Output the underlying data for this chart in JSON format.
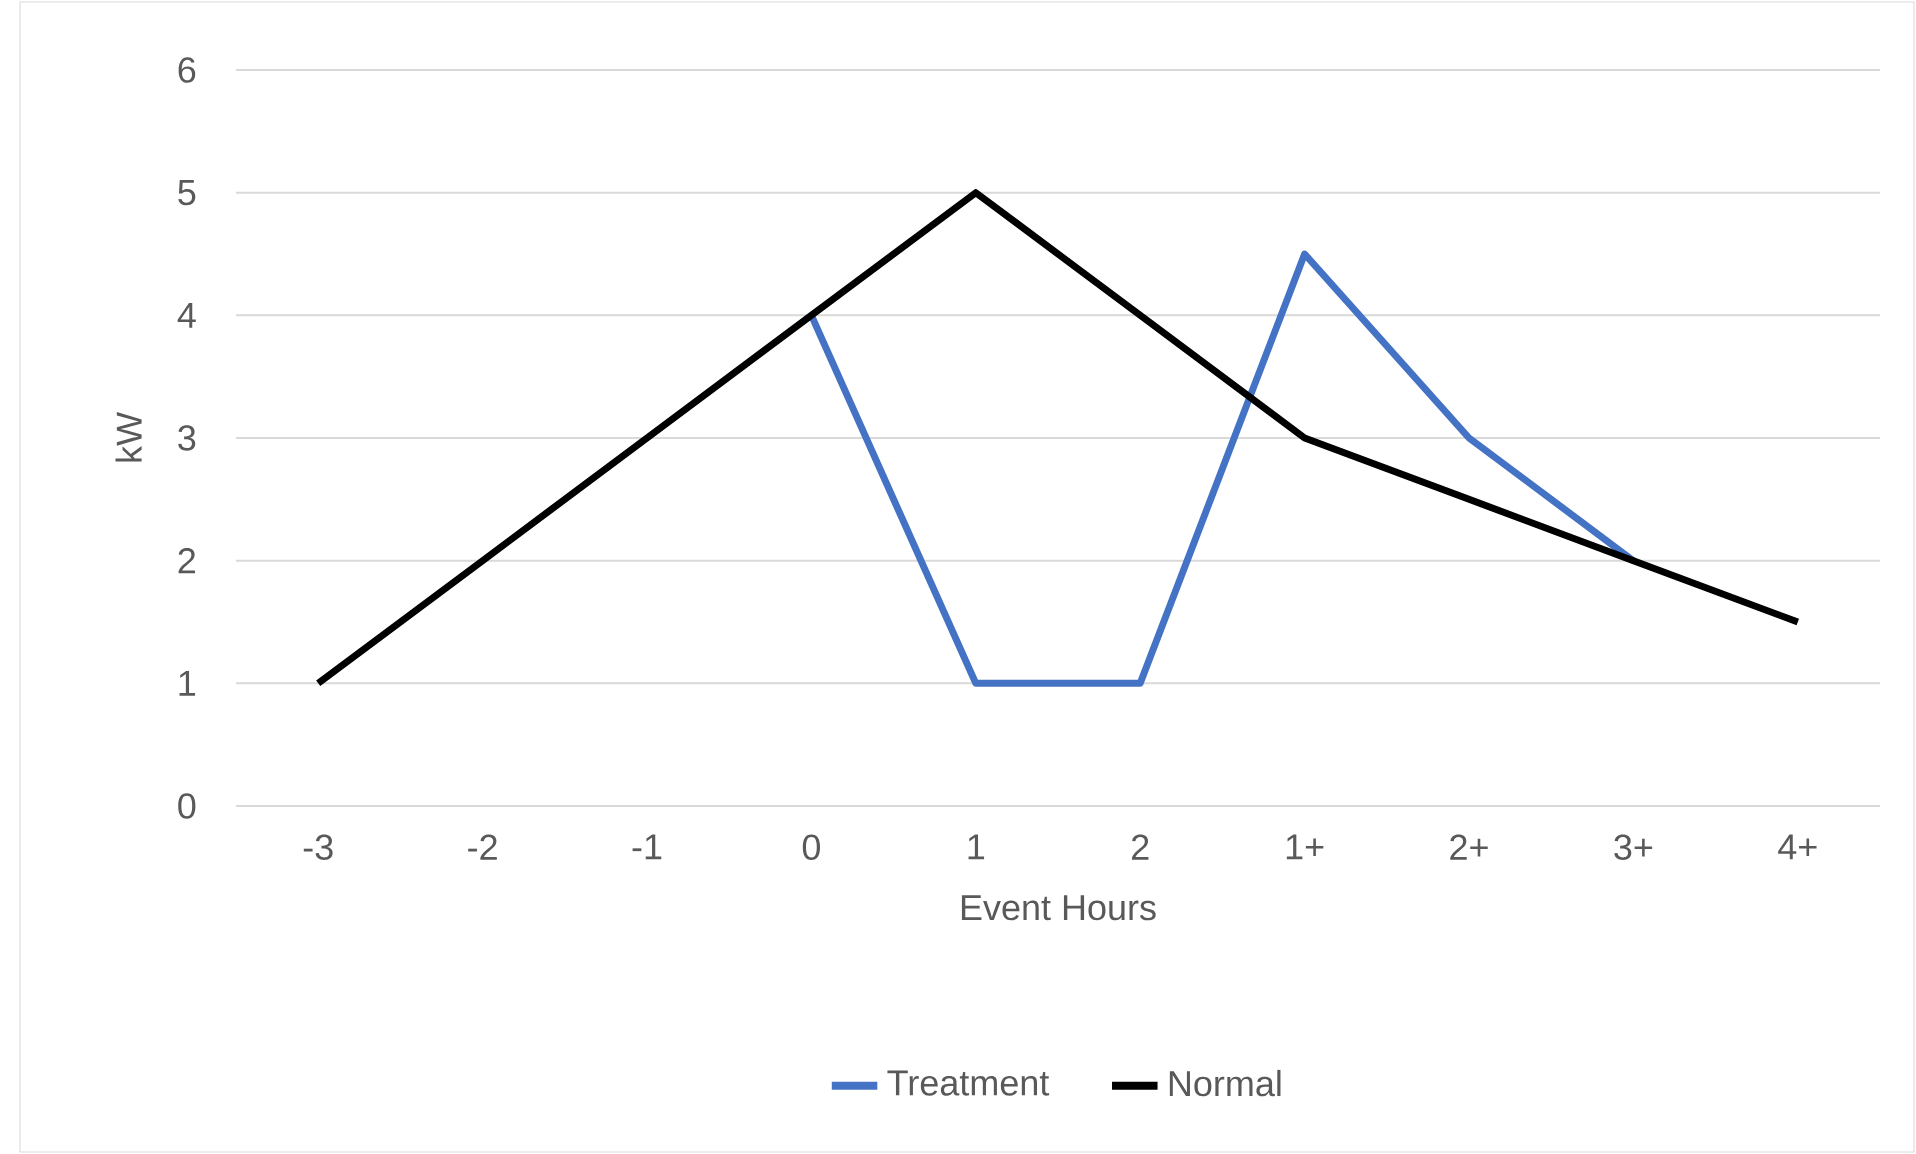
{
  "chart_data": {
    "type": "line",
    "xlabel": "Event Hours",
    "ylabel": "kW",
    "categories": [
      "-3",
      "-2",
      "-1",
      "0",
      "1",
      "2",
      "1+",
      "2+",
      "3+",
      "4+"
    ],
    "series": [
      {
        "name": "Treatment",
        "color": "#4472c4",
        "values": [
          null,
          null,
          null,
          4,
          1,
          1,
          4.5,
          3,
          2,
          null
        ]
      },
      {
        "name": "Normal",
        "color": "#000000",
        "values": [
          1,
          2,
          3,
          4,
          5,
          4,
          3,
          2.5,
          2,
          1.5
        ]
      }
    ],
    "ylim": [
      0,
      6
    ],
    "yticks": [
      0,
      1,
      2,
      3,
      4,
      5,
      6
    ],
    "grid": "y",
    "legend": "bottom",
    "marker": "none",
    "line_style": "solid"
  }
}
